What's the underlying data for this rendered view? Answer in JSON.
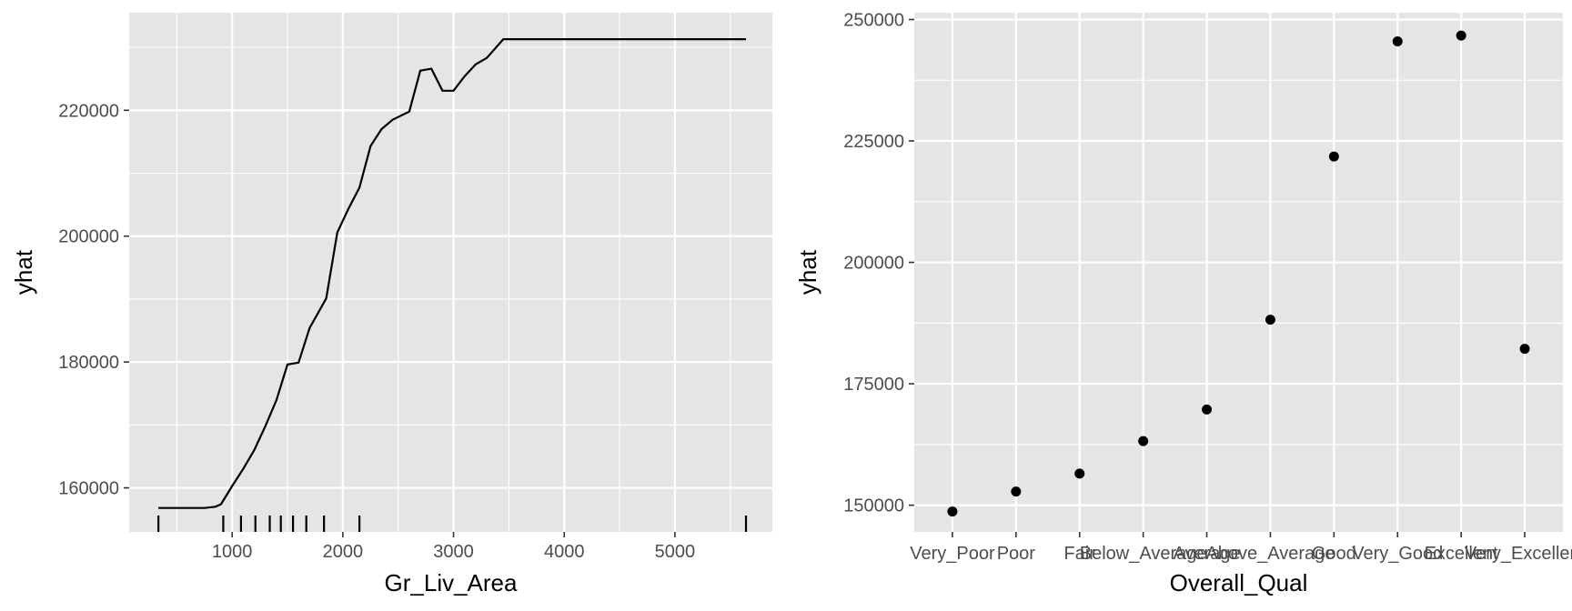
{
  "colors": {
    "panel_bg": "#e5e5e5",
    "grid_major": "#ffffff",
    "tick_text": "#4d4d4d",
    "mark": "#000000"
  },
  "chart_data": [
    {
      "type": "line",
      "xlabel": "Gr_Liv_Area",
      "ylabel": "yhat",
      "xlim": [
        70,
        5880
      ],
      "ylim": [
        153000,
        235500
      ],
      "xticks": [
        1000,
        2000,
        3000,
        4000,
        5000
      ],
      "yticks": [
        160000,
        180000,
        200000,
        220000
      ],
      "xtick_labels": [
        "1000",
        "2000",
        "3000",
        "4000",
        "5000"
      ],
      "ytick_labels": [
        "160000",
        "180000",
        "200000",
        "220000"
      ],
      "grid": true,
      "x": [
        334,
        500,
        650,
        750,
        850,
        900,
        1000,
        1100,
        1200,
        1300,
        1400,
        1500,
        1600,
        1700,
        1850,
        1950,
        2050,
        2150,
        2250,
        2350,
        2450,
        2600,
        2700,
        2800,
        2900,
        3000,
        3100,
        3200,
        3300,
        3450,
        3500,
        4000,
        5000,
        5642
      ],
      "y": [
        156800,
        156800,
        156800,
        156800,
        157000,
        157400,
        160300,
        163000,
        166000,
        169800,
        173900,
        179600,
        179900,
        185400,
        190100,
        200600,
        204300,
        207700,
        214300,
        217000,
        218500,
        219800,
        226300,
        226600,
        223100,
        223100,
        225400,
        227300,
        228300,
        231300,
        231300,
        231300,
        231300,
        231300
      ],
      "rug": [
        334,
        920,
        1080,
        1210,
        1340,
        1440,
        1550,
        1670,
        1830,
        2150,
        5642
      ]
    },
    {
      "type": "scatter",
      "xlabel": "Overall_Qual",
      "ylabel": "yhat",
      "ylim": [
        144500,
        251400
      ],
      "yticks": [
        150000,
        175000,
        200000,
        225000,
        250000
      ],
      "ytick_labels": [
        "150000",
        "175000",
        "200000",
        "225000",
        "250000"
      ],
      "grid": true,
      "categories": [
        "Very_Poor",
        "Poor",
        "Fair",
        "Below_Average",
        "Average",
        "Above_Average",
        "Good",
        "Very_Good",
        "Excellent",
        "Very_Excellent"
      ],
      "values": [
        148700,
        152800,
        156500,
        163200,
        169700,
        188200,
        221800,
        245500,
        246700,
        182200
      ]
    }
  ]
}
